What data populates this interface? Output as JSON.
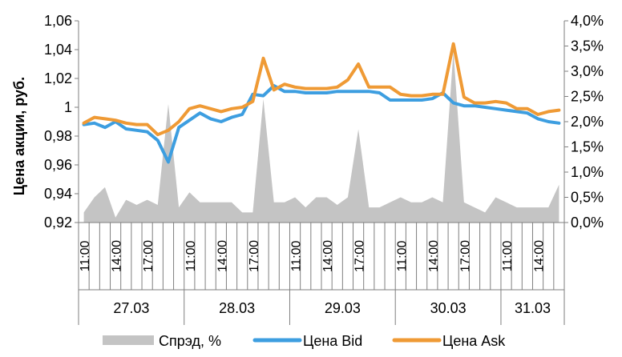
{
  "chart_data": {
    "type": "line",
    "ylabel": "Цена акции, руб.",
    "y_left": {
      "min": 0.92,
      "max": 1.06,
      "ticks": [
        "0,92",
        "0,94",
        "0,96",
        "0,98",
        "1",
        "1,02",
        "1,04",
        "1,06"
      ]
    },
    "y_right": {
      "min": 0,
      "max": 4.0,
      "ticks": [
        "0,0%",
        "0,5%",
        "1,0%",
        "1,5%",
        "2,0%",
        "2,5%",
        "3,0%",
        "3,5%",
        "4,0%"
      ]
    },
    "hour_labels": [
      "11:00",
      "14:00",
      "17:00"
    ],
    "days": [
      "27.03",
      "28.03",
      "29.03",
      "30.03",
      "31.03"
    ],
    "points_per_day": 10,
    "grid": false,
    "legend_position": "bottom",
    "series": [
      {
        "name": "Спрэд, %",
        "kind": "area",
        "axis": "right",
        "color": "#c4c4c4",
        "values": [
          0.2,
          0.5,
          0.7,
          0.1,
          0.45,
          0.35,
          0.45,
          0.35,
          2.35,
          0.3,
          0.6,
          0.4,
          0.4,
          0.4,
          0.4,
          0.2,
          0.2,
          2.45,
          0.4,
          0.4,
          0.5,
          0.3,
          0.5,
          0.5,
          0.35,
          0.5,
          1.85,
          0.3,
          0.3,
          0.4,
          0.5,
          0.4,
          0.4,
          0.5,
          0.4,
          3.4,
          0.4,
          0.3,
          0.2,
          0.5,
          0.4,
          0.3,
          0.3,
          0.3,
          0.3,
          0.75
        ]
      },
      {
        "name": "Цена Bid",
        "kind": "line",
        "axis": "left",
        "color": "#3d9ee0",
        "values": [
          0.988,
          0.989,
          0.986,
          0.99,
          0.985,
          0.984,
          0.983,
          0.977,
          0.962,
          0.986,
          0.991,
          0.996,
          0.992,
          0.99,
          0.993,
          0.995,
          1.009,
          1.008,
          1.015,
          1.011,
          1.011,
          1.01,
          1.01,
          1.01,
          1.011,
          1.011,
          1.011,
          1.011,
          1.01,
          1.005,
          1.005,
          1.005,
          1.005,
          1.006,
          1.01,
          1.003,
          1.001,
          1.001,
          1.0,
          0.999,
          0.998,
          0.997,
          0.996,
          0.992,
          0.99,
          0.989
        ]
      },
      {
        "name": "Цена Ask",
        "kind": "line",
        "axis": "left",
        "color": "#ef9a35",
        "values": [
          0.989,
          0.993,
          0.992,
          0.991,
          0.989,
          0.988,
          0.988,
          0.981,
          0.984,
          0.99,
          0.999,
          1.001,
          0.999,
          0.997,
          0.999,
          1.0,
          1.004,
          1.034,
          1.012,
          1.016,
          1.014,
          1.013,
          1.013,
          1.013,
          1.014,
          1.019,
          1.03,
          1.014,
          1.014,
          1.014,
          1.009,
          1.008,
          1.008,
          1.009,
          1.009,
          1.044,
          1.007,
          1.003,
          1.003,
          1.004,
          1.003,
          0.999,
          0.999,
          0.995,
          0.997,
          0.998
        ]
      }
    ]
  }
}
